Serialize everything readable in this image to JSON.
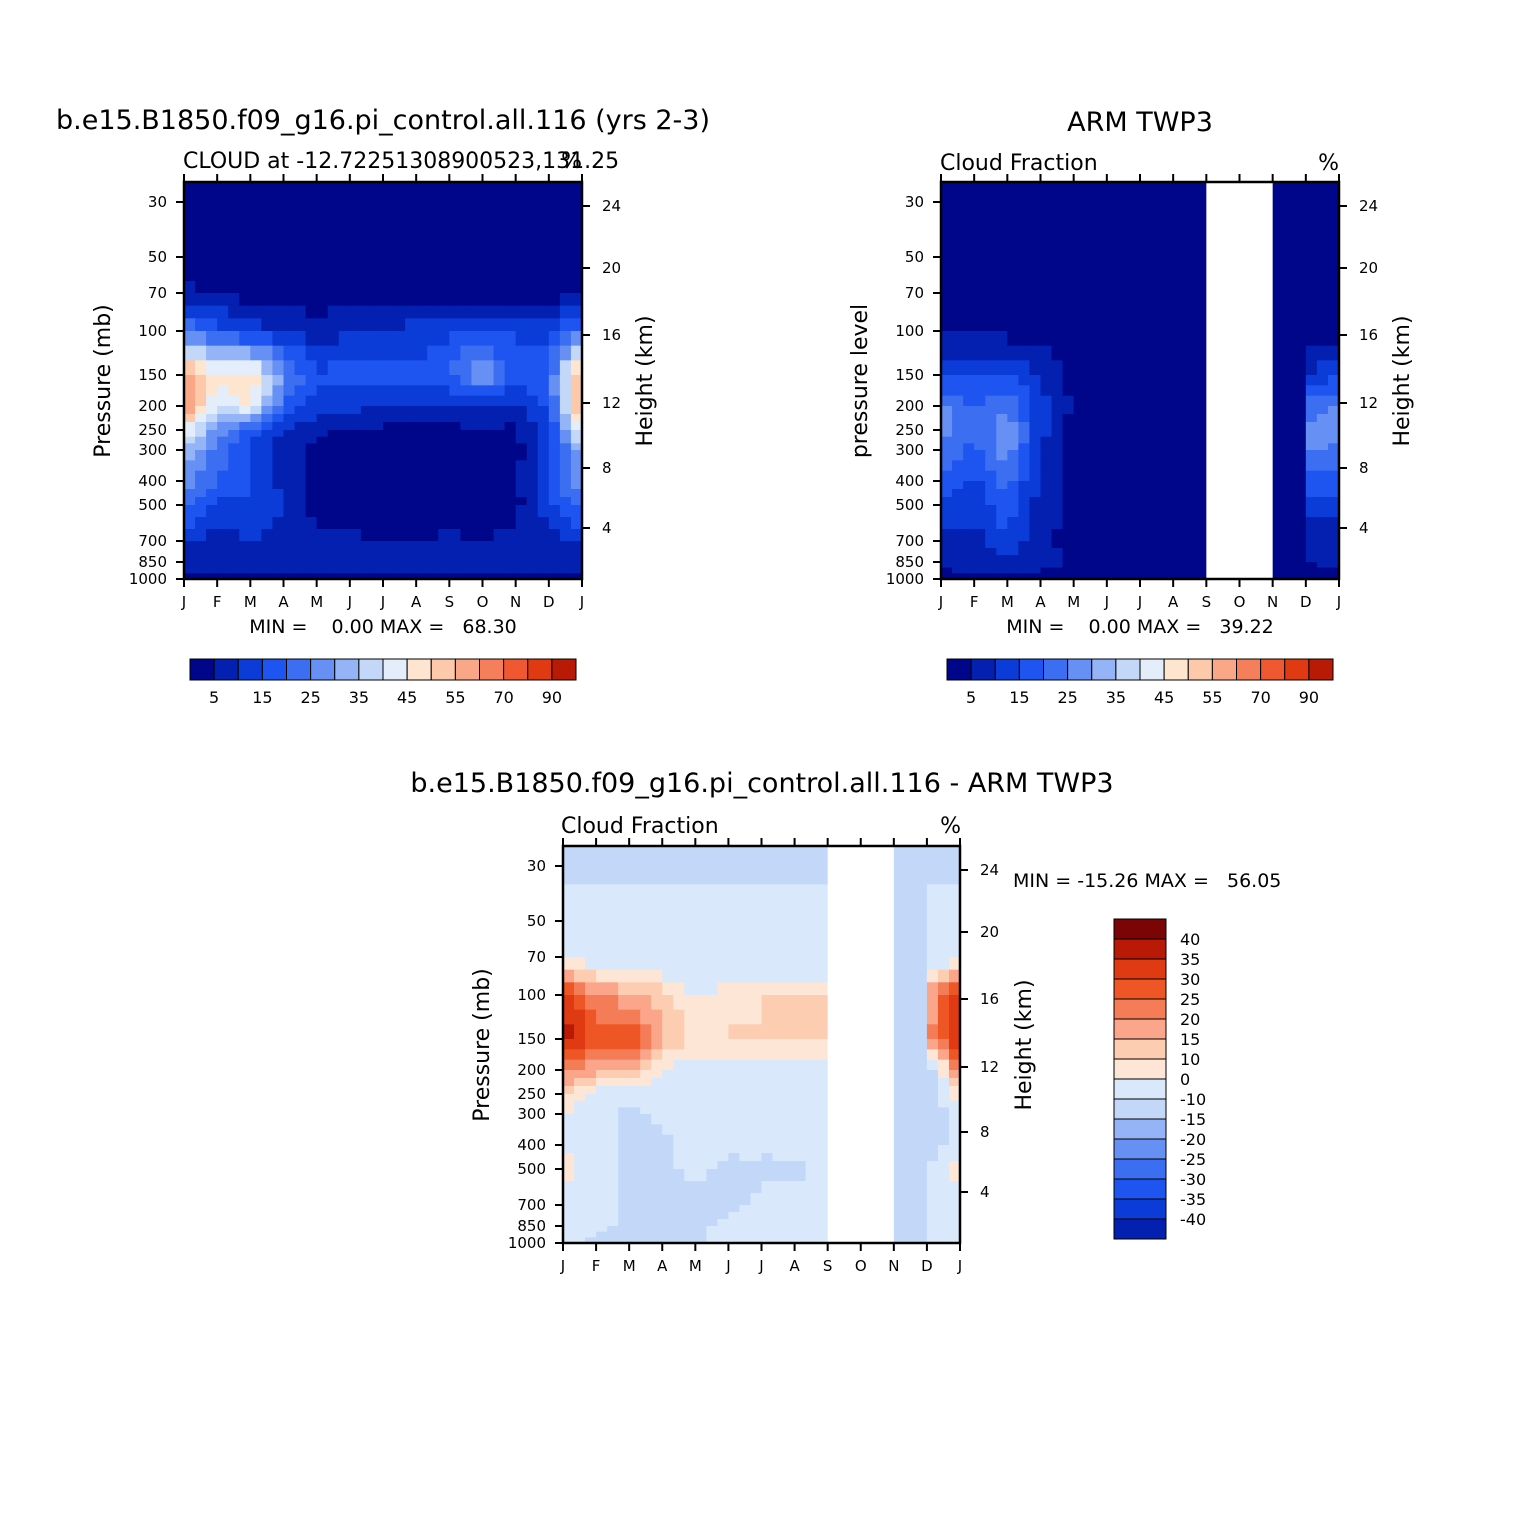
{
  "chart_data": [
    {
      "type": "heatmap",
      "title": "b.e15.B1850.f09_g16.pi_control.all.116 (yrs 2-3)",
      "subtitle_left": "CLOUD at -12.72251308900523,131.25",
      "subtitle_right": "%",
      "ylabel": "Pressure (mb)",
      "ylabel_right": "Height (km)",
      "stats": "MIN =    0.00 MAX =   68.30",
      "x_ticks": [
        "J",
        "F",
        "M",
        "A",
        "M",
        "J",
        "J",
        "A",
        "S",
        "O",
        "N",
        "D",
        "J"
      ],
      "y_ticks": [
        "30",
        "50",
        "70",
        "100",
        "150",
        "200",
        "250",
        "300",
        "400",
        "500",
        "700",
        "850",
        "1000"
      ],
      "y_right_ticks": [
        "24",
        "20",
        "16",
        "12",
        "8",
        "4"
      ],
      "colorbar_labels": [
        "5",
        "15",
        "25",
        "35",
        "45",
        "55",
        "70",
        "90"
      ],
      "colorbar_levels": [
        5,
        10,
        15,
        20,
        25,
        30,
        35,
        40,
        45,
        50,
        55,
        60,
        70,
        80,
        90
      ],
      "min": 0.0,
      "max": 68.3,
      "months": [
        "J",
        "F",
        "M",
        "A",
        "M",
        "J",
        "J",
        "A",
        "S",
        "O",
        "N",
        "D",
        "J"
      ],
      "pressure_levels": [
        30,
        50,
        70,
        100,
        150,
        200,
        250,
        300,
        400,
        500,
        700,
        850,
        1000
      ],
      "values": [
        [
          2,
          2,
          2,
          2,
          2,
          2,
          2,
          2,
          2,
          2,
          2,
          2,
          2
        ],
        [
          2,
          2,
          2,
          2,
          2,
          2,
          2,
          2,
          2,
          2,
          2,
          2,
          2
        ],
        [
          6,
          5,
          3,
          3,
          2,
          2,
          2,
          2,
          2,
          2,
          2,
          2,
          6
        ],
        [
          25,
          18,
          12,
          10,
          6,
          10,
          11,
          12,
          14,
          16,
          14,
          12,
          25
        ],
        [
          58,
          45,
          50,
          28,
          16,
          18,
          17,
          17,
          20,
          30,
          18,
          20,
          58
        ],
        [
          62,
          40,
          45,
          20,
          12,
          12,
          10,
          9,
          9,
          11,
          9,
          16,
          62
        ],
        [
          45,
          28,
          18,
          10,
          6,
          4,
          4,
          4,
          4,
          4,
          4,
          14,
          45
        ],
        [
          34,
          24,
          14,
          7,
          4,
          2,
          2,
          2,
          2,
          2,
          3,
          14,
          34
        ],
        [
          28,
          20,
          16,
          8,
          3,
          2,
          2,
          2,
          2,
          2,
          3,
          16,
          28
        ],
        [
          22,
          14,
          14,
          10,
          3,
          2,
          2,
          2,
          2,
          2,
          3,
          14,
          22
        ],
        [
          10,
          8,
          10,
          8,
          6,
          6,
          5,
          5,
          6,
          5,
          6,
          8,
          10
        ],
        [
          9,
          6,
          8,
          7,
          6,
          7,
          8,
          6,
          7,
          7,
          6,
          7,
          9
        ],
        [
          4,
          4,
          4,
          4,
          4,
          4,
          4,
          4,
          4,
          4,
          4,
          4,
          4
        ]
      ]
    },
    {
      "type": "heatmap",
      "title": "ARM TWP3",
      "subtitle_left": "Cloud Fraction",
      "subtitle_right": "%",
      "ylabel": "pressure level",
      "ylabel_right": "Height (km)",
      "stats": "MIN =    0.00 MAX =   39.22",
      "x_ticks": [
        "J",
        "F",
        "M",
        "A",
        "M",
        "J",
        "J",
        "A",
        "S",
        "O",
        "N",
        "D",
        "J"
      ],
      "y_ticks": [
        "30",
        "50",
        "70",
        "100",
        "150",
        "200",
        "250",
        "300",
        "400",
        "500",
        "700",
        "850",
        "1000"
      ],
      "y_right_ticks": [
        "24",
        "20",
        "16",
        "12",
        "8",
        "4"
      ],
      "colorbar_labels": [
        "5",
        "15",
        "25",
        "35",
        "45",
        "55",
        "70",
        "90"
      ],
      "colorbar_levels": [
        5,
        10,
        15,
        20,
        25,
        30,
        35,
        40,
        45,
        50,
        55,
        60,
        70,
        80,
        90
      ],
      "min": 0.0,
      "max": 39.22,
      "missing_months": [
        "S-O",
        "O-N"
      ],
      "months": [
        "J",
        "F",
        "M",
        "A",
        "M",
        "J",
        "J",
        "A",
        "S",
        "O",
        "N",
        "D",
        "J"
      ],
      "pressure_levels": [
        30,
        50,
        70,
        100,
        150,
        200,
        250,
        300,
        400,
        500,
        700,
        850,
        1000
      ],
      "values": [
        [
          2,
          2,
          2,
          2,
          2,
          2,
          2,
          2,
          2,
          null,
          null,
          2,
          2
        ],
        [
          2,
          2,
          2,
          2,
          2,
          2,
          2,
          2,
          2,
          null,
          null,
          2,
          2
        ],
        [
          2,
          2,
          2,
          2,
          2,
          2,
          2,
          2,
          2,
          null,
          null,
          2,
          2
        ],
        [
          3,
          4,
          3,
          3,
          2,
          2,
          2,
          2,
          2,
          null,
          null,
          3,
          3
        ],
        [
          15,
          14,
          16,
          9,
          3,
          2,
          2,
          2,
          2,
          null,
          null,
          10,
          15
        ],
        [
          26,
          20,
          24,
          12,
          4,
          2,
          2,
          2,
          2,
          null,
          null,
          22,
          26
        ],
        [
          28,
          20,
          30,
          12,
          3,
          2,
          2,
          2,
          2,
          null,
          null,
          27,
          28
        ],
        [
          24,
          18,
          28,
          10,
          3,
          2,
          2,
          2,
          2,
          null,
          null,
          26,
          24
        ],
        [
          18,
          14,
          22,
          8,
          3,
          2,
          2,
          2,
          2,
          null,
          null,
          18,
          18
        ],
        [
          14,
          12,
          18,
          8,
          3,
          2,
          2,
          2,
          2,
          null,
          null,
          12,
          14
        ],
        [
          6,
          8,
          14,
          6,
          3,
          2,
          2,
          2,
          2,
          null,
          null,
          5,
          6
        ],
        [
          6,
          8,
          9,
          7,
          4,
          4,
          2,
          2,
          2,
          null,
          null,
          5,
          6
        ],
        [
          3,
          3,
          3,
          3,
          3,
          3,
          3,
          3,
          3,
          null,
          null,
          3,
          3
        ]
      ]
    },
    {
      "type": "heatmap",
      "title": "b.e15.B1850.f09_g16.pi_control.all.116 - ARM TWP3",
      "subtitle_left": "Cloud Fraction",
      "subtitle_right": "%",
      "ylabel": "Pressure (mb)",
      "ylabel_right": "Height (km)",
      "stats": "MIN = -15.26 MAX =   56.05",
      "x_ticks": [
        "J",
        "F",
        "M",
        "A",
        "M",
        "J",
        "J",
        "A",
        "S",
        "O",
        "N",
        "D",
        "J"
      ],
      "y_ticks": [
        "30",
        "50",
        "70",
        "100",
        "150",
        "200",
        "250",
        "300",
        "400",
        "500",
        "700",
        "850",
        "1000"
      ],
      "y_right_ticks": [
        "24",
        "20",
        "16",
        "12",
        "8",
        "4"
      ],
      "colorbar_labels": [
        "40",
        "35",
        "30",
        "25",
        "20",
        "15",
        "10",
        "0",
        "-10",
        "-15",
        "-20",
        "-25",
        "-30",
        "-35",
        "-40"
      ],
      "colorbar_levels": [
        -40,
        -35,
        -30,
        -25,
        -20,
        -15,
        -10,
        0,
        10,
        15,
        20,
        25,
        30,
        35,
        40
      ],
      "min": -15.26,
      "max": 56.05,
      "missing_months": [
        "S-O",
        "O-N"
      ],
      "months": [
        "J",
        "F",
        "M",
        "A",
        "M",
        "J",
        "J",
        "A",
        "S",
        "O",
        "N",
        "D",
        "J"
      ],
      "pressure_levels": [
        30,
        50,
        70,
        100,
        150,
        200,
        250,
        300,
        400,
        500,
        700,
        850,
        1000
      ],
      "values": [
        [
          -5,
          -5,
          -5,
          -5,
          -5,
          -5,
          -5,
          -5,
          -5,
          null,
          null,
          -5,
          -5
        ],
        [
          5,
          5,
          5,
          5,
          5,
          5,
          5,
          5,
          5,
          null,
          null,
          5,
          5
        ],
        [
          6,
          5,
          3,
          3,
          3,
          3,
          3,
          3,
          3,
          null,
          null,
          3,
          6
        ],
        [
          42,
          25,
          22,
          17,
          9,
          12,
          15,
          16,
          15,
          null,
          null,
          20,
          42
        ],
        [
          42,
          32,
          38,
          22,
          14,
          16,
          15,
          16,
          15,
          null,
          null,
          22,
          42
        ],
        [
          28,
          22,
          22,
          9,
          6,
          6,
          6,
          6,
          6,
          null,
          null,
          -5,
          28
        ],
        [
          16,
          8,
          5,
          5,
          5,
          5,
          5,
          5,
          5,
          null,
          null,
          -8,
          16
        ],
        [
          10,
          5,
          -5,
          5,
          5,
          5,
          5,
          5,
          5,
          null,
          null,
          -12,
          10
        ],
        [
          8,
          5,
          -5,
          -5,
          5,
          5,
          5,
          5,
          5,
          null,
          null,
          -10,
          8
        ],
        [
          14,
          5,
          -5,
          -5,
          5,
          -5,
          -5,
          -5,
          5,
          null,
          null,
          5,
          14
        ],
        [
          5,
          5,
          -5,
          -5,
          -5,
          -5,
          5,
          5,
          5,
          null,
          null,
          5,
          5
        ],
        [
          5,
          5,
          -5,
          -5,
          -5,
          5,
          12,
          5,
          5,
          null,
          null,
          5,
          5
        ],
        [
          5,
          -5,
          -5,
          -5,
          -5,
          5,
          5,
          5,
          5,
          null,
          null,
          5,
          5
        ]
      ]
    }
  ],
  "colors": {
    "cloud_scale": [
      "#00068a",
      "#0320b0",
      "#0b3cd8",
      "#1e55f0",
      "#3c6ef2",
      "#6690f4",
      "#94b4f7",
      "#c3d8f9",
      "#e4eefb",
      "#fee5d0",
      "#fcc9ab",
      "#f9a787",
      "#f57f5a",
      "#ef5830",
      "#e03a13",
      "#b81a05",
      "#7b0504"
    ],
    "diff_scale": [
      "#00068a",
      "#0320b0",
      "#0b3cd8",
      "#1e55f0",
      "#3c6ef2",
      "#6690f4",
      "#94b4f7",
      "#c3d8f9",
      "#dae8fb",
      "#fde6d5",
      "#fdcdb2",
      "#fba68a",
      "#f47c56",
      "#ee5725",
      "#e03a13",
      "#b81a05",
      "#7b0504"
    ]
  }
}
